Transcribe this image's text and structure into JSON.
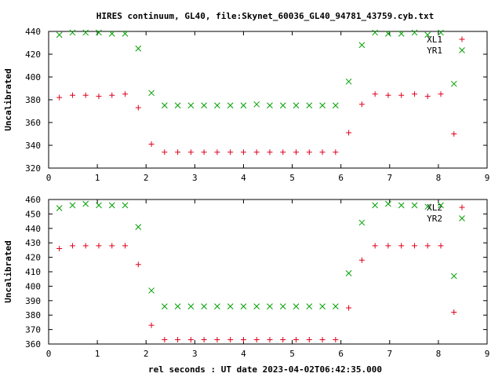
{
  "title": "HIRES continuum, GL40, file:Skynet_60036_GL40_94781_43759.cyb.txt",
  "xlabel": "rel seconds : UT date 2023-04-02T06:42:35.000",
  "colors": {
    "plus": "#e0001b",
    "cross": "#00a000",
    "frame": "#000000"
  },
  "chart_data": [
    {
      "type": "scatter",
      "ylabel": "Uncalibrated",
      "xlim": [
        0,
        9
      ],
      "ylim": [
        320,
        440
      ],
      "xticks": [
        "0",
        "1",
        "2",
        "3",
        "4",
        "5",
        "6",
        "7",
        "8",
        "9"
      ],
      "yticks": [
        "320",
        "340",
        "360",
        "380",
        "400",
        "420",
        "440"
      ],
      "ytick_values": [
        320,
        340,
        360,
        380,
        400,
        420,
        440
      ],
      "legend": "top-right",
      "series": [
        {
          "name": "XL1",
          "marker": "plus",
          "x": [
            0.22,
            0.49,
            0.76,
            1.03,
            1.3,
            1.57,
            1.84,
            2.11,
            2.38,
            2.65,
            2.92,
            3.19,
            3.46,
            3.73,
            4.0,
            4.27,
            4.54,
            4.81,
            5.08,
            5.35,
            5.62,
            5.89,
            6.16,
            6.43,
            6.7,
            6.97,
            7.24,
            7.51,
            7.78,
            8.05,
            8.32
          ],
          "y": [
            382,
            384,
            384,
            383,
            384,
            385,
            373,
            341,
            334,
            334,
            334,
            334,
            334,
            334,
            334,
            334,
            334,
            334,
            334,
            334,
            334,
            334,
            351,
            376,
            385,
            384,
            384,
            385,
            383,
            385,
            350
          ]
        },
        {
          "name": "YR1",
          "marker": "cross",
          "x": [
            0.22,
            0.49,
            0.76,
            1.03,
            1.3,
            1.57,
            1.84,
            2.11,
            2.38,
            2.65,
            2.92,
            3.19,
            3.46,
            3.73,
            4.0,
            4.27,
            4.54,
            4.81,
            5.08,
            5.35,
            5.62,
            5.89,
            6.16,
            6.43,
            6.7,
            6.97,
            7.24,
            7.51,
            7.78,
            8.05,
            8.32
          ],
          "y": [
            437,
            439,
            439,
            439,
            438,
            438,
            425,
            386,
            375,
            375,
            375,
            375,
            375,
            375,
            375,
            376,
            375,
            375,
            375,
            375,
            375,
            375,
            396,
            428,
            439,
            438,
            438,
            439,
            437,
            439,
            394
          ]
        }
      ]
    },
    {
      "type": "scatter",
      "ylabel": "Uncalibrated",
      "xlim": [
        0,
        9
      ],
      "ylim": [
        360,
        460
      ],
      "xticks": [
        "0",
        "1",
        "2",
        "3",
        "4",
        "5",
        "6",
        "7",
        "8",
        "9"
      ],
      "yticks": [
        "360",
        "370",
        "380",
        "390",
        "400",
        "410",
        "420",
        "430",
        "440",
        "450",
        "460"
      ],
      "ytick_values": [
        360,
        370,
        380,
        390,
        400,
        410,
        420,
        430,
        440,
        450,
        460
      ],
      "legend": "top-right",
      "series": [
        {
          "name": "XL2",
          "marker": "plus",
          "x": [
            0.22,
            0.49,
            0.76,
            1.03,
            1.3,
            1.57,
            1.84,
            2.11,
            2.38,
            2.65,
            2.92,
            3.19,
            3.46,
            3.73,
            4.0,
            4.27,
            4.54,
            4.81,
            5.08,
            5.35,
            5.62,
            5.89,
            6.16,
            6.43,
            6.7,
            6.97,
            7.24,
            7.51,
            7.78,
            8.05,
            8.32
          ],
          "y": [
            426,
            428,
            428,
            428,
            428,
            428,
            415,
            373,
            363,
            363,
            363,
            363,
            363,
            363,
            363,
            363,
            363,
            363,
            363,
            363,
            363,
            363,
            385,
            418,
            428,
            428,
            428,
            428,
            428,
            428,
            382
          ]
        },
        {
          "name": "YR2",
          "marker": "cross",
          "x": [
            0.22,
            0.49,
            0.76,
            1.03,
            1.3,
            1.57,
            1.84,
            2.11,
            2.38,
            2.65,
            2.92,
            3.19,
            3.46,
            3.73,
            4.0,
            4.27,
            4.54,
            4.81,
            5.08,
            5.35,
            5.62,
            5.89,
            6.16,
            6.43,
            6.7,
            6.97,
            7.24,
            7.51,
            7.78,
            8.05,
            8.32
          ],
          "y": [
            454,
            456,
            457,
            456,
            456,
            456,
            441,
            397,
            386,
            386,
            386,
            386,
            386,
            386,
            386,
            386,
            386,
            386,
            386,
            386,
            386,
            386,
            409,
            444,
            456,
            457,
            456,
            456,
            455,
            456,
            407
          ]
        }
      ]
    }
  ]
}
